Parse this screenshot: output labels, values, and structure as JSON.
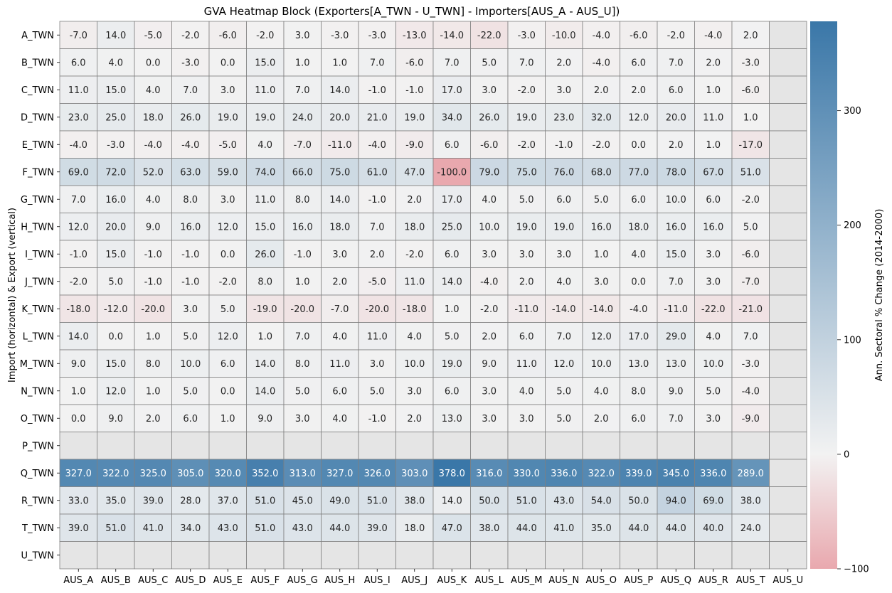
{
  "chart_data": {
    "type": "heatmap",
    "title": "GVA Heatmap Block (Exporters[A_TWN - U_TWN] - Importers[AUS_A - AUS_U])",
    "ylabel": "Import (horizontal) & Export (vertical)",
    "xlabel": "",
    "x_categories": [
      "AUS_A",
      "AUS_B",
      "AUS_C",
      "AUS_D",
      "AUS_E",
      "AUS_F",
      "AUS_G",
      "AUS_H",
      "AUS_I",
      "AUS_J",
      "AUS_K",
      "AUS_L",
      "AUS_M",
      "AUS_N",
      "AUS_O",
      "AUS_P",
      "AUS_Q",
      "AUS_R",
      "AUS_T",
      "AUS_U"
    ],
    "y_categories": [
      "A_TWN",
      "B_TWN",
      "C_TWN",
      "D_TWN",
      "E_TWN",
      "F_TWN",
      "G_TWN",
      "H_TWN",
      "I_TWN",
      "J_TWN",
      "K_TWN",
      "L_TWN",
      "M_TWN",
      "N_TWN",
      "O_TWN",
      "P_TWN",
      "Q_TWN",
      "R_TWN",
      "T_TWN",
      "U_TWN"
    ],
    "values": [
      [
        -7.0,
        14.0,
        -5.0,
        -2.0,
        -6.0,
        -2.0,
        3.0,
        -3.0,
        -3.0,
        -13.0,
        -14.0,
        -22.0,
        -3.0,
        -10.0,
        -4.0,
        -6.0,
        -2.0,
        -4.0,
        2.0,
        null
      ],
      [
        6.0,
        4.0,
        0.0,
        -3.0,
        0.0,
        15.0,
        1.0,
        1.0,
        7.0,
        -6.0,
        7.0,
        5.0,
        7.0,
        2.0,
        -4.0,
        6.0,
        7.0,
        2.0,
        -3.0,
        null
      ],
      [
        11.0,
        15.0,
        4.0,
        7.0,
        3.0,
        11.0,
        7.0,
        14.0,
        -1.0,
        -1.0,
        17.0,
        3.0,
        -2.0,
        3.0,
        2.0,
        2.0,
        6.0,
        1.0,
        -6.0,
        null
      ],
      [
        23.0,
        25.0,
        18.0,
        26.0,
        19.0,
        19.0,
        24.0,
        20.0,
        21.0,
        19.0,
        34.0,
        26.0,
        19.0,
        23.0,
        32.0,
        12.0,
        20.0,
        11.0,
        1.0,
        null
      ],
      [
        -4.0,
        -3.0,
        -4.0,
        -4.0,
        -5.0,
        4.0,
        -7.0,
        -11.0,
        -4.0,
        -9.0,
        6.0,
        -6.0,
        -2.0,
        -1.0,
        -2.0,
        0.0,
        2.0,
        1.0,
        -17.0,
        null
      ],
      [
        69.0,
        72.0,
        52.0,
        63.0,
        59.0,
        74.0,
        66.0,
        75.0,
        61.0,
        47.0,
        -100.0,
        79.0,
        75.0,
        76.0,
        68.0,
        77.0,
        78.0,
        67.0,
        51.0,
        null
      ],
      [
        7.0,
        16.0,
        4.0,
        8.0,
        3.0,
        11.0,
        8.0,
        14.0,
        -1.0,
        2.0,
        17.0,
        4.0,
        5.0,
        6.0,
        5.0,
        6.0,
        10.0,
        6.0,
        -2.0,
        null
      ],
      [
        12.0,
        20.0,
        9.0,
        16.0,
        12.0,
        15.0,
        16.0,
        18.0,
        7.0,
        18.0,
        25.0,
        10.0,
        19.0,
        19.0,
        16.0,
        18.0,
        16.0,
        16.0,
        5.0,
        null
      ],
      [
        -1.0,
        15.0,
        -1.0,
        -1.0,
        0.0,
        26.0,
        -1.0,
        3.0,
        2.0,
        -2.0,
        6.0,
        3.0,
        3.0,
        3.0,
        1.0,
        4.0,
        15.0,
        3.0,
        -6.0,
        null
      ],
      [
        -2.0,
        5.0,
        -1.0,
        -1.0,
        -2.0,
        8.0,
        1.0,
        2.0,
        -5.0,
        11.0,
        14.0,
        -4.0,
        2.0,
        4.0,
        3.0,
        0.0,
        7.0,
        3.0,
        -7.0,
        null
      ],
      [
        -18.0,
        -12.0,
        -20.0,
        3.0,
        5.0,
        -19.0,
        -20.0,
        -7.0,
        -20.0,
        -18.0,
        1.0,
        -2.0,
        -11.0,
        -14.0,
        -14.0,
        -4.0,
        -11.0,
        -22.0,
        -21.0,
        null
      ],
      [
        14.0,
        0.0,
        1.0,
        5.0,
        12.0,
        1.0,
        7.0,
        4.0,
        11.0,
        4.0,
        5.0,
        2.0,
        6.0,
        7.0,
        12.0,
        17.0,
        29.0,
        4.0,
        7.0,
        null
      ],
      [
        9.0,
        15.0,
        8.0,
        10.0,
        6.0,
        14.0,
        8.0,
        11.0,
        3.0,
        10.0,
        19.0,
        9.0,
        11.0,
        12.0,
        10.0,
        13.0,
        13.0,
        10.0,
        -3.0,
        null
      ],
      [
        1.0,
        12.0,
        1.0,
        5.0,
        0.0,
        14.0,
        5.0,
        6.0,
        5.0,
        3.0,
        6.0,
        3.0,
        4.0,
        5.0,
        4.0,
        8.0,
        9.0,
        5.0,
        -4.0,
        null
      ],
      [
        0.0,
        9.0,
        2.0,
        6.0,
        1.0,
        9.0,
        3.0,
        4.0,
        -1.0,
        2.0,
        13.0,
        3.0,
        3.0,
        5.0,
        2.0,
        6.0,
        7.0,
        3.0,
        -9.0,
        null
      ],
      [
        null,
        null,
        null,
        null,
        null,
        null,
        null,
        null,
        null,
        null,
        null,
        null,
        null,
        null,
        null,
        null,
        null,
        null,
        null,
        null
      ],
      [
        327.0,
        322.0,
        325.0,
        305.0,
        320.0,
        352.0,
        313.0,
        327.0,
        326.0,
        303.0,
        378.0,
        316.0,
        330.0,
        336.0,
        322.0,
        339.0,
        345.0,
        336.0,
        289.0,
        null
      ],
      [
        33.0,
        35.0,
        39.0,
        28.0,
        37.0,
        51.0,
        45.0,
        49.0,
        51.0,
        38.0,
        14.0,
        50.0,
        51.0,
        43.0,
        54.0,
        50.0,
        94.0,
        69.0,
        38.0,
        null
      ],
      [
        39.0,
        51.0,
        41.0,
        34.0,
        43.0,
        51.0,
        43.0,
        44.0,
        39.0,
        18.0,
        47.0,
        38.0,
        44.0,
        41.0,
        35.0,
        44.0,
        44.0,
        40.0,
        24.0,
        null
      ],
      [
        null,
        null,
        null,
        null,
        null,
        null,
        null,
        null,
        null,
        null,
        null,
        null,
        null,
        null,
        null,
        null,
        null,
        null,
        null,
        null
      ]
    ],
    "vmin": -100,
    "vmax": 378,
    "center": 0,
    "colorbar": {
      "label": "Ann. Sectoral % Change (2014-2000)",
      "ticks": [
        -100,
        0,
        100,
        200,
        300
      ],
      "tick_labels": [
        "−100",
        "0",
        "100",
        "200",
        "300"
      ]
    },
    "colors": {
      "negative": "#e9a8ae",
      "center": "#f2f2f2",
      "positive": "#3a77a8",
      "missing": "#e5e5e5",
      "grid": "#808080"
    }
  }
}
